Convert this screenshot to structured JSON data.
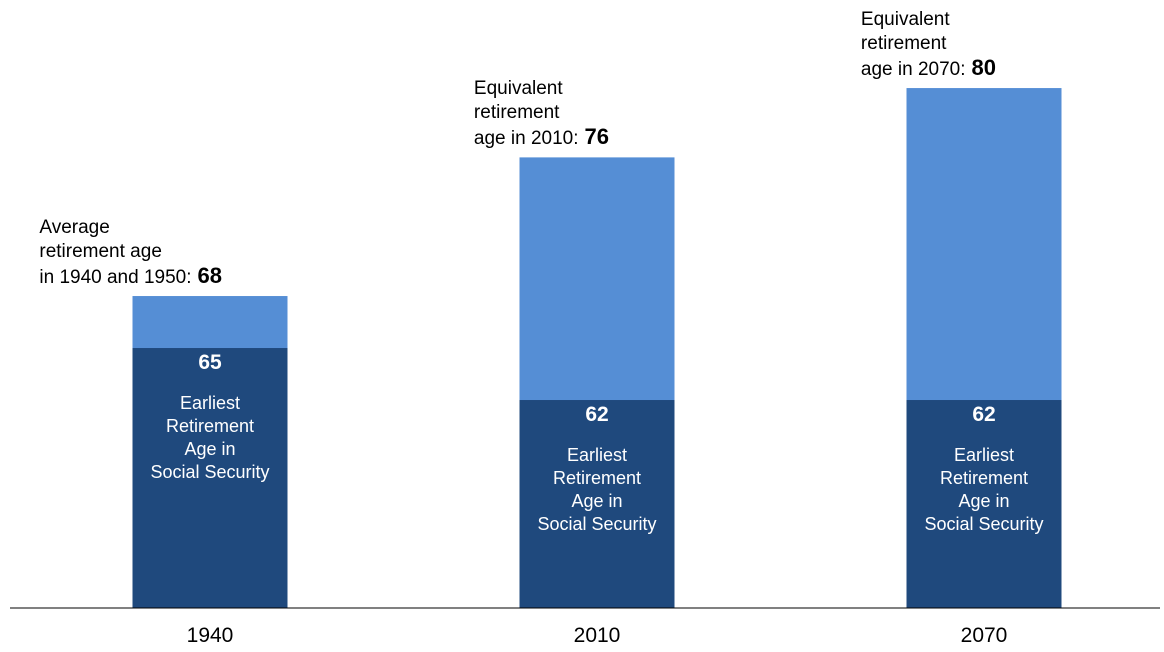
{
  "chart_data": {
    "type": "bar",
    "categories": [
      "1940",
      "2010",
      "2070"
    ],
    "ylim": [
      50,
      82
    ],
    "series": [
      {
        "name": "Earliest\nRetirement\nAge in\nSocial Security",
        "color": "#1f497d",
        "values": [
          65,
          62,
          62
        ]
      },
      {
        "color": "#558ed5",
        "values": [
          68,
          76,
          80
        ]
      }
    ],
    "annotations": [
      "Average\nretirement age\nin 1940 and 1950:",
      "Equivalent\nretirement\nage in 2010:",
      "Equivalent\nretirement\nage in 2070:"
    ]
  }
}
